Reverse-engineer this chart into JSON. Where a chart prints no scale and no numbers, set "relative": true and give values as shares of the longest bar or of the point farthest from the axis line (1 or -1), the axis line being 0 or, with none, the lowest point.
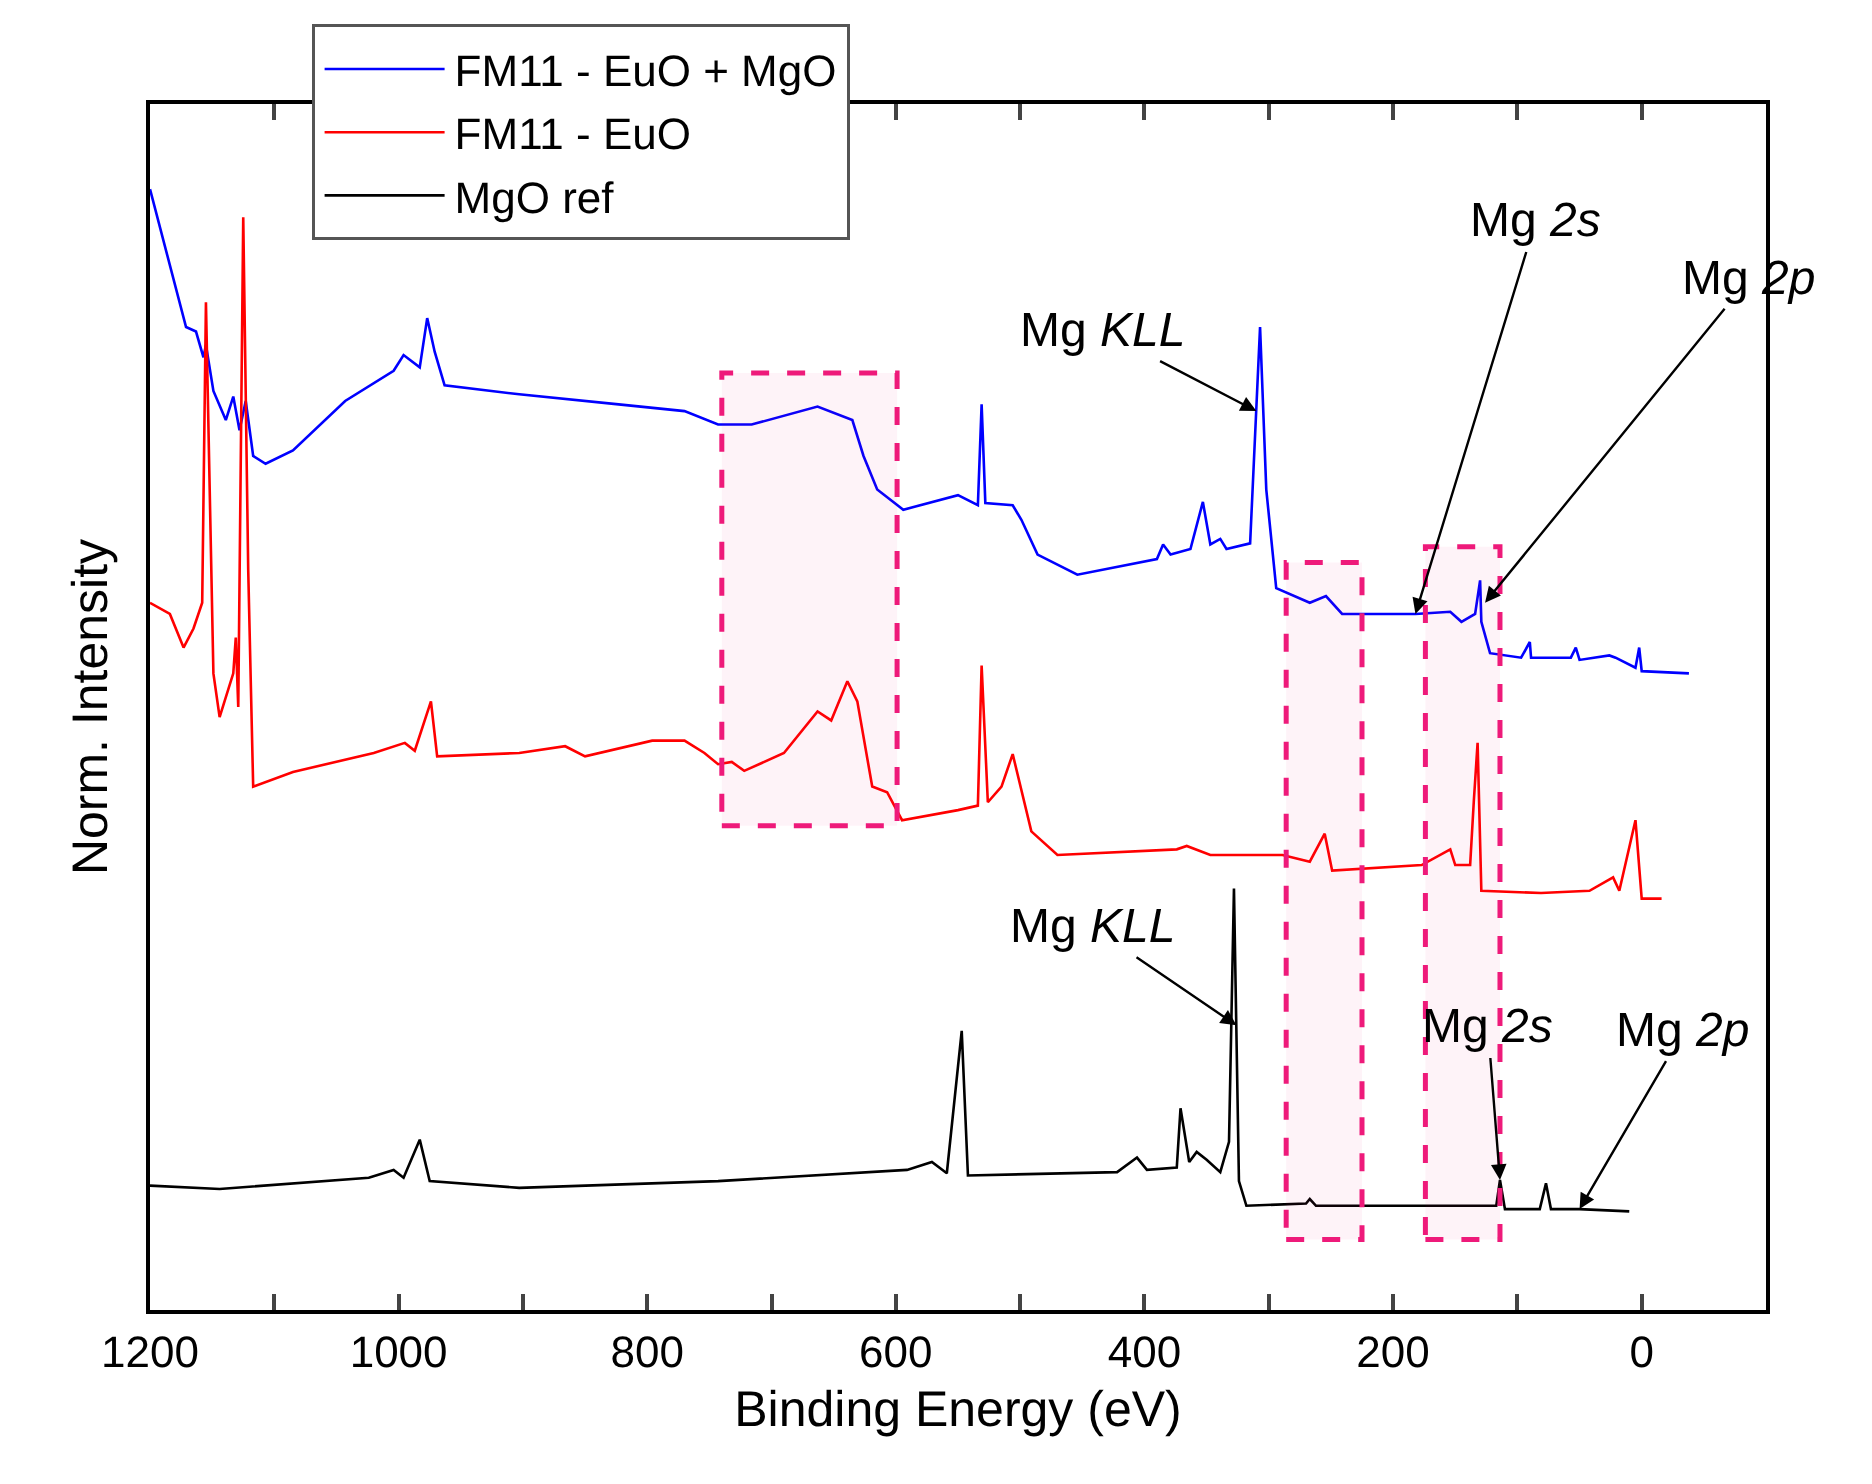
{
  "chart_data": {
    "type": "line",
    "relative": true,
    "xlabel": "Binding Energy (eV)",
    "ylabel": "Norm. Intensity",
    "xlim": [
      1200,
      -100
    ],
    "xticks": [
      1200,
      {
        "value": 1100,
        "label": null
      },
      1000,
      {
        "value": 900,
        "label": null
      },
      800,
      {
        "value": 700,
        "label": null
      },
      600,
      {
        "value": 500,
        "label": null
      },
      400,
      {
        "value": 300,
        "label": null
      },
      200,
      {
        "value": 100,
        "label": null
      },
      0,
      {
        "value": -100,
        "label": null
      }
    ],
    "legend": "top left",
    "marker": "none",
    "line_style": "solid",
    "series": [
      {
        "name": "FM11 - EuO + MgO",
        "color": "#0000ff",
        "x": [
          1200,
          1171,
          1163,
          1157,
          1155,
          1149,
          1139,
          1133,
          1128,
          1123,
          1117,
          1107,
          1085,
          1043,
          1004,
          996,
          983,
          977,
          971,
          963,
          903,
          823,
          770,
          743,
          716,
          663,
          635,
          626,
          615,
          594,
          550,
          534,
          531,
          528,
          506,
          499,
          486,
          454,
          390,
          385,
          379,
          363,
          353,
          347,
          339,
          334,
          315,
          307,
          302,
          294,
          267,
          254,
          241,
          182,
          154,
          145,
          134,
          130,
          129,
          122,
          97,
          90,
          89,
          57,
          53,
          50,
          26,
          21,
          5,
          2,
          0,
          -38
        ],
        "values": [
          1.0,
          0.877,
          0.873,
          0.85,
          0.861,
          0.82,
          0.794,
          0.815,
          0.785,
          0.811,
          0.762,
          0.755,
          0.767,
          0.811,
          0.838,
          0.852,
          0.841,
          0.885,
          0.855,
          0.825,
          0.817,
          0.808,
          0.802,
          0.79,
          0.79,
          0.806,
          0.794,
          0.762,
          0.732,
          0.714,
          0.727,
          0.718,
          0.808,
          0.72,
          0.718,
          0.705,
          0.674,
          0.656,
          0.67,
          0.683,
          0.674,
          0.679,
          0.721,
          0.683,
          0.688,
          0.679,
          0.684,
          0.877,
          0.732,
          0.644,
          0.631,
          0.637,
          0.621,
          0.621,
          0.623,
          0.614,
          0.621,
          0.651,
          0.614,
          0.586,
          0.582,
          0.596,
          0.582,
          0.582,
          0.591,
          0.58,
          0.584,
          0.582,
          0.573,
          0.591,
          0.57,
          0.568
        ]
      },
      {
        "name": "FM11 - EuO",
        "color": "#ff0000",
        "x": [
          1200,
          1184,
          1173,
          1165,
          1158,
          1155,
          1149,
          1144,
          1133,
          1131,
          1129,
          1125,
          1121,
          1117,
          1085,
          1020,
          995,
          987,
          974,
          969,
          903,
          866,
          850,
          796,
          770,
          754,
          743,
          732,
          722,
          690,
          663,
          652,
          639,
          631,
          619,
          607,
          595,
          550,
          534,
          531,
          526,
          515,
          506,
          491,
          470,
          374,
          366,
          347,
          289,
          267,
          255,
          249,
          177,
          154,
          150,
          138,
          135,
          132,
          129,
          81,
          42,
          23,
          18,
          5,
          0,
          -16
        ],
        "values": [
          0.631,
          0.621,
          0.591,
          0.608,
          0.631,
          0.899,
          0.568,
          0.529,
          0.568,
          0.6,
          0.538,
          0.975,
          0.661,
          0.467,
          0.48,
          0.497,
          0.506,
          0.499,
          0.543,
          0.494,
          0.497,
          0.503,
          0.494,
          0.508,
          0.508,
          0.497,
          0.487,
          0.489,
          0.481,
          0.497,
          0.534,
          0.526,
          0.561,
          0.543,
          0.467,
          0.462,
          0.437,
          0.446,
          0.45,
          0.575,
          0.453,
          0.467,
          0.496,
          0.427,
          0.406,
          0.411,
          0.414,
          0.406,
          0.406,
          0.4,
          0.425,
          0.392,
          0.397,
          0.411,
          0.397,
          0.397,
          0.455,
          0.506,
          0.374,
          0.372,
          0.374,
          0.386,
          0.374,
          0.437,
          0.367,
          0.367
        ]
      },
      {
        "name": "MgO ref",
        "color": "#000000",
        "x": [
          1200,
          1144,
          1024,
          1004,
          996,
          983,
          975,
          903,
          743,
          591,
          571,
          559,
          547,
          542,
          422,
          406,
          398,
          374,
          371,
          364,
          358,
          350,
          339,
          332,
          328,
          324,
          318,
          270,
          267,
          262,
          117,
          114,
          110,
          82,
          77,
          73,
          50,
          10
        ],
        "values": [
          0.111,
          0.108,
          0.118,
          0.125,
          0.118,
          0.152,
          0.115,
          0.109,
          0.115,
          0.125,
          0.132,
          0.122,
          0.249,
          0.12,
          0.123,
          0.136,
          0.125,
          0.127,
          0.18,
          0.132,
          0.141,
          0.134,
          0.123,
          0.15,
          0.376,
          0.115,
          0.093,
          0.095,
          0.099,
          0.093,
          0.093,
          0.116,
          0.09,
          0.09,
          0.113,
          0.09,
          0.09,
          0.088
        ]
      }
    ],
    "bands": [
      {
        "axis": "x",
        "from": 740,
        "to": 599,
        "color": "#ee1a7a"
      },
      {
        "axis": "x",
        "from": 286,
        "to": 225,
        "color": "#ee1a7a"
      },
      {
        "axis": "x",
        "from": 174,
        "to": 114,
        "color": "#ee1a7a"
      }
    ],
    "annotations": [
      {
        "text": "Mg KLL",
        "x": 310,
        "y": 0.802
      },
      {
        "text": "Mg 2s",
        "x": 182,
        "y": 0.621
      },
      {
        "text": "Mg 2p",
        "x": 126,
        "y": 0.631
      },
      {
        "text": "Mg KLL",
        "x": 326,
        "y": 0.254
      },
      {
        "text": "Mg 2s",
        "x": 114,
        "y": 0.116
      },
      {
        "text": "Mg 2p",
        "x": 50,
        "y": 0.09
      }
    ]
  }
}
